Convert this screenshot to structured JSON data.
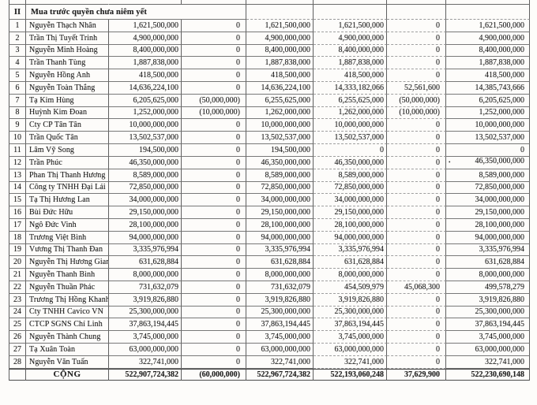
{
  "document": {
    "kind": "scanned-shareholder-table",
    "background": "#fdfcfa",
    "border_color": "#5f5f5f",
    "text_color": "#222222"
  },
  "table": {
    "section": {
      "no": "II",
      "title": "Mua trước quyền chưa niêm yết"
    },
    "rows": [
      {
        "no": "1",
        "name": "Nguyễn Thạch Nhân",
        "v1": "1,621,500,000",
        "v2": "0",
        "v3": "1,621,500,000",
        "v4": "1,621,500,000",
        "v5": "0",
        "v6": "1,621,500,000"
      },
      {
        "no": "2",
        "name": "Trần Thị Tuyết Trinh",
        "v1": "4,900,000,000",
        "v2": "0",
        "v3": "4,900,000,000",
        "v4": "4,900,000,000",
        "v5": "0",
        "v6": "4,900,000,000"
      },
      {
        "no": "3",
        "name": "Nguyễn Minh Hoàng",
        "v1": "8,400,000,000",
        "v2": "0",
        "v3": "8,400,000,000",
        "v4": "8,400,000,000",
        "v5": "0",
        "v6": "8,400,000,000"
      },
      {
        "no": "4",
        "name": "Trần Thanh Tùng",
        "v1": "1,887,838,000",
        "v2": "0",
        "v3": "1,887,838,000",
        "v4": "1,887,838,000",
        "v5": "0",
        "v6": "1,887,838,000"
      },
      {
        "no": "5",
        "name": "Nguyễn Hồng Anh",
        "v1": "418,500,000",
        "v2": "0",
        "v3": "418,500,000",
        "v4": "418,500,000",
        "v5": "0",
        "v6": "418,500,000"
      },
      {
        "no": "6",
        "name": "Nguyễn Toàn Thắng",
        "v1": "14,636,224,100",
        "v2": "0",
        "v3": "14,636,224,100",
        "v4": "14,333,182,066",
        "v5": "52,561,600",
        "v6": "14,385,743,666"
      },
      {
        "no": "7",
        "name": "Tạ Kim Hùng",
        "v1": "6,205,625,000",
        "v2": "(50,000,000)",
        "v3": "6,255,625,000",
        "v4": "6,255,625,000",
        "v5": "(50,000,000)",
        "v6": "6,205,625,000"
      },
      {
        "no": "8",
        "name": "Huỳnh Kim Đoan",
        "v1": "1,252,000,000",
        "v2": "(10,000,000)",
        "v3": "1,262,000,000",
        "v4": "1,262,000,000",
        "v5": "(10,000,000)",
        "v6": "1,252,000,000"
      },
      {
        "no": "9",
        "name": "Cty CP Tân Tân",
        "v1": "10,000,000,000",
        "v2": "0",
        "v3": "10,000,000,000",
        "v4": "10,000,000,000",
        "v5": "0",
        "v6": "10,000,000,000"
      },
      {
        "no": "10",
        "name": "Trần Quốc Tân",
        "v1": "13,502,537,000",
        "v2": "0",
        "v3": "13,502,537,000",
        "v4": "13,502,537,000",
        "v5": "0",
        "v6": "13,502,537,000"
      },
      {
        "no": "11",
        "name": "Lâm Vỹ Song",
        "v1": "194,500,000",
        "v2": "0",
        "v3": "194,500,000",
        "v4": "0",
        "v5": "0",
        "v6": "0"
      },
      {
        "no": "12",
        "name": "Trần Phúc",
        "v1": "46,350,000,000",
        "v2": "0",
        "v3": "46,350,000,000",
        "v4": "46,350,000,000",
        "v5": "0",
        "v6": "46,350,000,000",
        "marker": "•"
      },
      {
        "no": "13",
        "name": "Phan Thị Thanh Hương",
        "v1": "8,589,000,000",
        "v2": "0",
        "v3": "8,589,000,000",
        "v4": "8,589,000,000",
        "v5": "0",
        "v6": "8,589,000,000"
      },
      {
        "no": "14",
        "name": "Công ty TNHH Đại Lải",
        "v1": "72,850,000,000",
        "v2": "0",
        "v3": "72,850,000,000",
        "v4": "72,850,000,000",
        "v5": "0",
        "v6": "72,850,000,000"
      },
      {
        "no": "15",
        "name": "Tạ Thị Hương Lan",
        "v1": "34,000,000,000",
        "v2": "0",
        "v3": "34,000,000,000",
        "v4": "34,000,000,000",
        "v5": "0",
        "v6": "34,000,000,000"
      },
      {
        "no": "16",
        "name": "Bùi Đức Hữu",
        "v1": "29,150,000,000",
        "v2": "0",
        "v3": "29,150,000,000",
        "v4": "29,150,000,000",
        "v5": "0",
        "v6": "29,150,000,000"
      },
      {
        "no": "17",
        "name": "Ngô Đức Vinh",
        "v1": "28,100,000,000",
        "v2": "0",
        "v3": "28,100,000,000",
        "v4": "28,100,000,000",
        "v5": "0",
        "v6": "28,100,000,000"
      },
      {
        "no": "18",
        "name": "Trương Việt Bình",
        "v1": "94,000,000,000",
        "v2": "0",
        "v3": "94,000,000,000",
        "v4": "94,000,000,000",
        "v5": "0",
        "v6": "94,000,000,000"
      },
      {
        "no": "19",
        "name": "Vương Thị Thanh Đan",
        "v1": "3,335,976,994",
        "v2": "0",
        "v3": "3,335,976,994",
        "v4": "3,335,976,994",
        "v5": "0",
        "v6": "3,335,976,994"
      },
      {
        "no": "20",
        "name": "Nguyễn Thị Hương Giang",
        "v1": "631,628,884",
        "v2": "0",
        "v3": "631,628,884",
        "v4": "631,628,884",
        "v5": "0",
        "v6": "631,628,884"
      },
      {
        "no": "21",
        "name": "Nguyễn Thanh Bình",
        "v1": "8,000,000,000",
        "v2": "0",
        "v3": "8,000,000,000",
        "v4": "8,000,000,000",
        "v5": "0",
        "v6": "8,000,000,000"
      },
      {
        "no": "22",
        "name": "Nguyễn Thuần Phác",
        "v1": "731,632,079",
        "v2": "0",
        "v3": "731,632,079",
        "v4": "454,509,979",
        "v5": "45,068,300",
        "v6": "499,578,279"
      },
      {
        "no": "23",
        "name": "Trương Thị Hồng Khanh",
        "v1": "3,919,826,880",
        "v2": "0",
        "v3": "3,919,826,880",
        "v4": "3,919,826,880",
        "v5": "0",
        "v6": "3,919,826,880"
      },
      {
        "no": "24",
        "name": "Cty TNHH Cavico VN",
        "v1": "25,300,000,000",
        "v2": "0",
        "v3": "25,300,000,000",
        "v4": "25,300,000,000",
        "v5": "0",
        "v6": "25,300,000,000"
      },
      {
        "no": "25",
        "name": "CTCP SGNS Chí Linh",
        "v1": "37,863,194,445",
        "v2": "0",
        "v3": "37,863,194,445",
        "v4": "37,863,194,445",
        "v5": "0",
        "v6": "37,863,194,445"
      },
      {
        "no": "26",
        "name": "Nguyễn Thành Chung",
        "v1": "3,745,000,000",
        "v2": "0",
        "v3": "3,745,000,000",
        "v4": "3,745,000,000",
        "v5": "0",
        "v6": "3,745,000,000"
      },
      {
        "no": "27",
        "name": "Tạ Xuân Toàn",
        "v1": "63,000,000,000",
        "v2": "0",
        "v3": "63,000,000,000",
        "v4": "63,000,000,000",
        "v5": "0",
        "v6": "63,000,000,000"
      },
      {
        "no": "28",
        "name": "Nguyễn Văn Tuấn",
        "v1": "322,741,000",
        "v2": "0",
        "v3": "322,741,000",
        "v4": "322,741,000",
        "v5": "0",
        "v6": "322,741,000"
      }
    ],
    "total": {
      "label": "CỘNG",
      "v1": "522,907,724,382",
      "v2": "(60,000,000)",
      "v3": "522,967,724,382",
      "v4": "522,193,060,248",
      "v5": "37,629,900",
      "v6": "522,230,690,148"
    }
  }
}
